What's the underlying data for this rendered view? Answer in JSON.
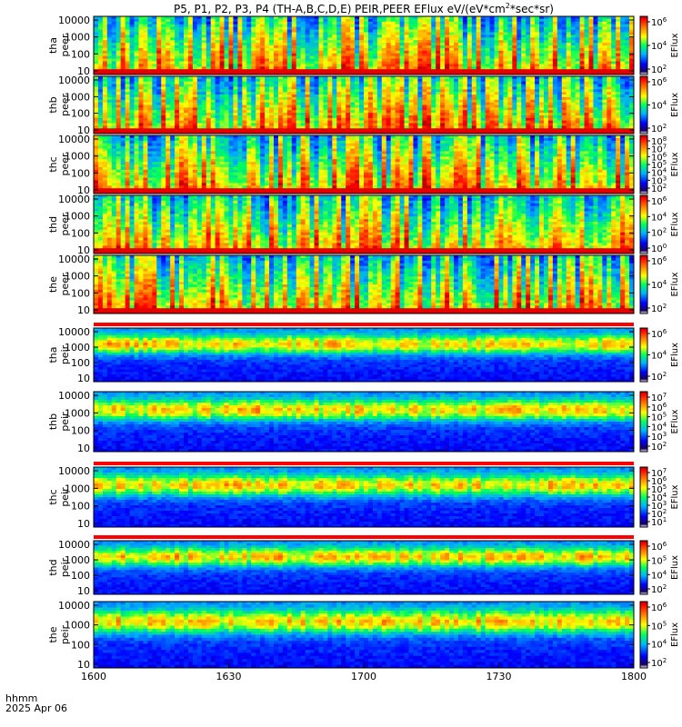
{
  "title": "P5, P1, P2, P3, P4 (TH-A,B,C,D,E) PEIR,PEER EFlux eV/(eV*cm",
  "title_sup": "2",
  "title_tail": "*sec*sr)",
  "footer": {
    "line1": "hhmm",
    "line2": "2025 Apr 06"
  },
  "chart_data": {
    "type": "heatmap",
    "x_ticks": [
      "1600",
      "1630",
      "1700",
      "1730",
      "1800"
    ],
    "xlim": [
      "16:00",
      "18:00"
    ],
    "colorbar_label": "EFlux",
    "panels": [
      {
        "label1": "tha",
        "label2": "peer",
        "yticks": [
          "10000",
          "1000",
          "100",
          "10"
        ],
        "cticks": [
          {
            "base": "10",
            "exp": "6"
          },
          {
            "base": "10",
            "exp": "4"
          },
          {
            "base": "10",
            "exp": "2"
          }
        ],
        "mode": "peer",
        "bar": false
      },
      {
        "label1": "thb",
        "label2": "peer",
        "yticks": [
          "10000",
          "1000",
          "100",
          "10"
        ],
        "cticks": [
          {
            "base": "10",
            "exp": "6"
          },
          {
            "base": "10",
            "exp": "4"
          },
          {
            "base": "10",
            "exp": "2"
          }
        ],
        "mode": "peer",
        "bar": false
      },
      {
        "label1": "thc",
        "label2": "peer",
        "yticks": [
          "10000",
          "1000",
          "100",
          "10"
        ],
        "cticks": [
          {
            "base": "10",
            "exp": "8"
          },
          {
            "base": "10",
            "exp": "7"
          },
          {
            "base": "10",
            "exp": "6"
          },
          {
            "base": "10",
            "exp": "5"
          },
          {
            "base": "10",
            "exp": "4"
          },
          {
            "base": "10",
            "exp": "3"
          },
          {
            "base": "10",
            "exp": "2"
          }
        ],
        "mode": "peer",
        "bar": false
      },
      {
        "label1": "thd",
        "label2": "peer",
        "yticks": [
          "10000",
          "1000",
          "100",
          "10"
        ],
        "cticks": [
          {
            "base": "10",
            "exp": "6"
          },
          {
            "base": "10",
            "exp": "4"
          },
          {
            "base": "10",
            "exp": "2"
          },
          {
            "base": "10",
            "exp": "0"
          }
        ],
        "mode": "peer",
        "bar": false
      },
      {
        "label1": "the",
        "label2": "peer",
        "yticks": [
          "10000",
          "1000",
          "100",
          "10"
        ],
        "cticks": [
          {
            "base": "10",
            "exp": "6"
          },
          {
            "base": "10",
            "exp": "4"
          },
          {
            "base": "10",
            "exp": "2"
          }
        ],
        "mode": "peer",
        "bar": false
      },
      {
        "label1": "tha",
        "label2": "peir",
        "yticks": [
          "10000",
          "1000",
          "100",
          "10"
        ],
        "cticks": [
          {
            "base": "10",
            "exp": "6"
          },
          {
            "base": "10",
            "exp": "4"
          },
          {
            "base": "10",
            "exp": "2"
          }
        ],
        "mode": "peir",
        "bar": true
      },
      {
        "label1": "thb",
        "label2": "peir",
        "yticks": [
          "10000",
          "1000",
          "100",
          "10"
        ],
        "cticks": [
          {
            "base": "10",
            "exp": "7"
          },
          {
            "base": "10",
            "exp": "6"
          },
          {
            "base": "10",
            "exp": "5"
          },
          {
            "base": "10",
            "exp": "4"
          },
          {
            "base": "10",
            "exp": "3"
          },
          {
            "base": "10",
            "exp": "2"
          }
        ],
        "mode": "peir",
        "bar": false
      },
      {
        "label1": "thc",
        "label2": "peir",
        "yticks": [
          "10000",
          "1000",
          "100",
          "10"
        ],
        "cticks": [
          {
            "base": "10",
            "exp": "7"
          },
          {
            "base": "10",
            "exp": "6"
          },
          {
            "base": "10",
            "exp": "5"
          },
          {
            "base": "10",
            "exp": "4"
          },
          {
            "base": "10",
            "exp": "3"
          },
          {
            "base": "10",
            "exp": "2"
          },
          {
            "base": "10",
            "exp": "1"
          }
        ],
        "mode": "peir",
        "bar": true
      },
      {
        "label1": "thd",
        "label2": "peir",
        "yticks": [
          "10000",
          "1000",
          "100",
          "10"
        ],
        "cticks": [
          {
            "base": "10",
            "exp": "6"
          },
          {
            "base": "10",
            "exp": "5"
          },
          {
            "base": "10",
            "exp": "4"
          },
          {
            "base": "10",
            "exp": "2"
          }
        ],
        "mode": "peir",
        "bar": true
      },
      {
        "label1": "the",
        "label2": "peir",
        "yticks": [
          "10000",
          "1000",
          "100",
          "10"
        ],
        "cticks": [
          {
            "base": "10",
            "exp": "6"
          },
          {
            "base": "10",
            "exp": "5"
          },
          {
            "base": "10",
            "exp": "4"
          },
          {
            "base": "10",
            "exp": "2"
          }
        ],
        "mode": "peir",
        "bar": false
      }
    ]
  }
}
